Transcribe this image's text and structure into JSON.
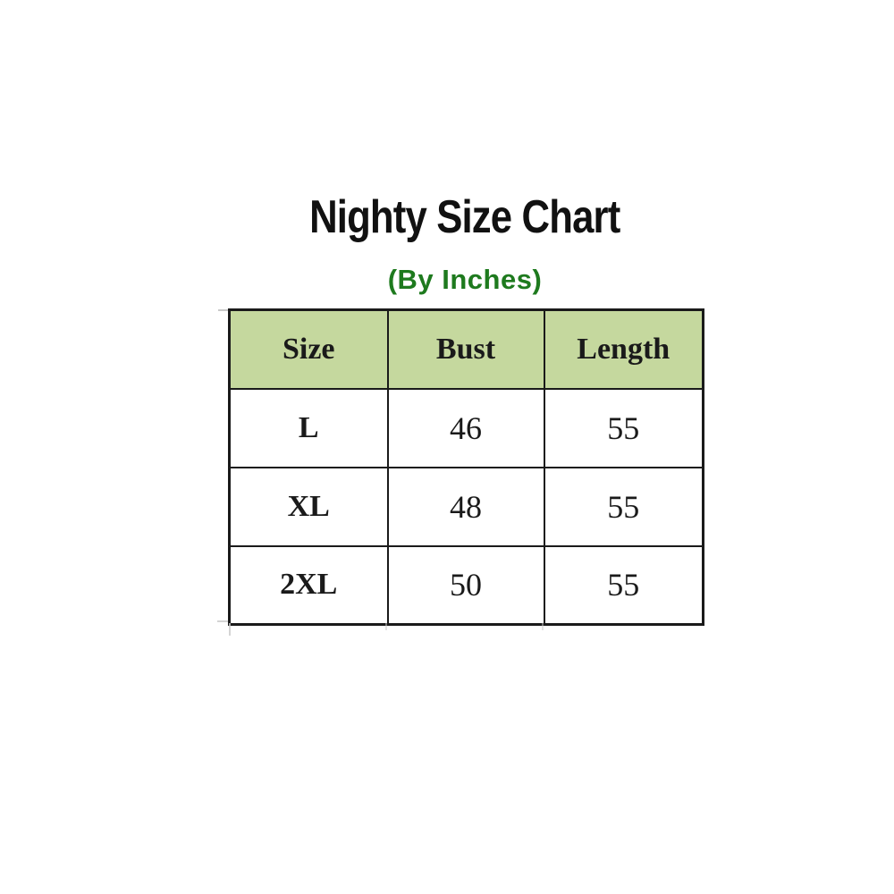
{
  "title": "Nighty Size Chart",
  "subtitle": "(By Inches)",
  "colors": {
    "header_background": "#c5d89e",
    "subtitle_green": "#1e7a1e",
    "border": "#1a1a1a",
    "text": "#1a1a1a",
    "page_background": "#ffffff"
  },
  "table": {
    "columns": [
      "Size",
      "Bust",
      "Length"
    ],
    "rows": [
      [
        "L",
        "46",
        "55"
      ],
      [
        "XL",
        "48",
        "55"
      ],
      [
        "2XL",
        "50",
        "55"
      ]
    ]
  },
  "chart_data": {
    "type": "table",
    "title": "Nighty Size Chart",
    "subtitle": "(By Inches)",
    "unit": "Inches",
    "columns": [
      "Size",
      "Bust",
      "Length"
    ],
    "rows": [
      {
        "size": "L",
        "bust": 46,
        "length": 55
      },
      {
        "size": "XL",
        "bust": 48,
        "length": 55
      },
      {
        "size": "2XL",
        "bust": 50,
        "length": 55
      }
    ]
  }
}
